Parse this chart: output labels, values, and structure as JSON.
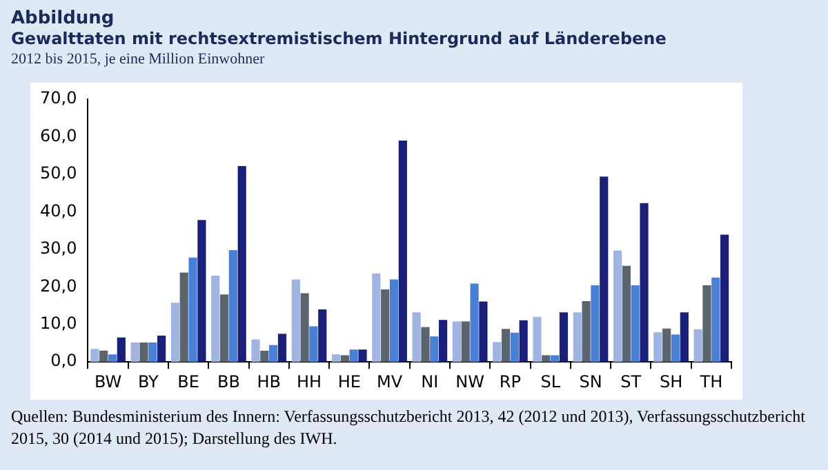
{
  "chart_data": {
    "type": "bar",
    "title": "Gewalttaten mit rechtsextremistischem Hintergrund auf Länderebene",
    "subtitle": "2012 bis 2015, je eine Million Einwohner",
    "annotations": [
      "Abbildung",
      "Quellen: Bundesministerium des Innern: Verfassungsschutzbericht 2013, 42 (2012 und 2013), Verfassungsschutzbericht 2015, 30 (2014 und 2015); Darstellung des IWH."
    ],
    "categories": [
      "BW",
      "BY",
      "BE",
      "BB",
      "HB",
      "HH",
      "HE",
      "MV",
      "NI",
      "NW",
      "RP",
      "SL",
      "SN",
      "ST",
      "SH",
      "TH"
    ],
    "series": [
      {
        "color": "#9fb4e0",
        "values": [
          3.5,
          5.2,
          15.8,
          23.0,
          6.0,
          22.0,
          2.0,
          23.6,
          13.2,
          10.8,
          5.3,
          12.0,
          13.2,
          29.7,
          7.9,
          8.7
        ]
      },
      {
        "color": "#5a6570",
        "values": [
          3.0,
          5.2,
          23.8,
          18.0,
          3.0,
          18.3,
          1.8,
          19.3,
          9.3,
          10.8,
          8.8,
          1.8,
          16.2,
          25.6,
          8.9,
          20.4
        ]
      },
      {
        "color": "#4a7fd6",
        "values": [
          2.0,
          5.2,
          27.8,
          29.8,
          4.5,
          9.5,
          3.3,
          22.0,
          6.8,
          20.9,
          7.8,
          1.8,
          20.4,
          20.4,
          7.3,
          22.5
        ]
      },
      {
        "color": "#1a1f7a",
        "values": [
          6.5,
          7.0,
          37.8,
          52.2,
          7.5,
          14.0,
          3.3,
          59.0,
          11.2,
          16.1,
          11.1,
          13.2,
          49.4,
          42.3,
          13.2,
          33.9
        ]
      }
    ],
    "ylim": [
      0,
      70
    ],
    "yticks": [
      {
        "value": 0,
        "label": "0,0"
      },
      {
        "value": 10,
        "label": "10,0"
      },
      {
        "value": 20,
        "label": "20,0"
      },
      {
        "value": 30,
        "label": "30,0"
      },
      {
        "value": 40,
        "label": "40,0"
      },
      {
        "value": 50,
        "label": "50,0"
      },
      {
        "value": 60,
        "label": "60,0"
      },
      {
        "value": 70,
        "label": "70,0"
      }
    ],
    "grid": false,
    "legend": false
  }
}
